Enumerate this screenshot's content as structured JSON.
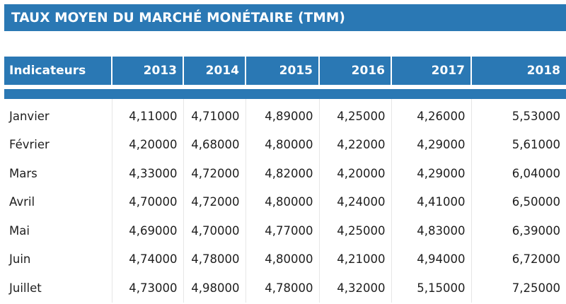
{
  "title": "TAUX MOYEN DU MARCHÉ MONÉTAIRE (TMM)",
  "colors": {
    "header_blue": "#2a78b4"
  },
  "table": {
    "columns": [
      "Indicateurs",
      "2013",
      "2014",
      "2015",
      "2016",
      "2017",
      "2018"
    ],
    "rows": [
      [
        "Janvier",
        "4,11000",
        "4,71000",
        "4,89000",
        "4,25000",
        "4,26000",
        "5,53000"
      ],
      [
        "Février",
        "4,20000",
        "4,68000",
        "4,80000",
        "4,22000",
        "4,29000",
        "5,61000"
      ],
      [
        "Mars",
        "4,33000",
        "4,72000",
        "4,82000",
        "4,20000",
        "4,29000",
        "6,04000"
      ],
      [
        "Avril",
        "4,70000",
        "4,72000",
        "4,80000",
        "4,24000",
        "4,41000",
        "6,50000"
      ],
      [
        "Mai",
        "4,69000",
        "4,70000",
        "4,77000",
        "4,25000",
        "4,83000",
        "6,39000"
      ],
      [
        "Juin",
        "4,74000",
        "4,78000",
        "4,80000",
        "4,21000",
        "4,94000",
        "6,72000"
      ],
      [
        "Juillet",
        "4,73000",
        "4,98000",
        "4,78000",
        "4,32000",
        "5,15000",
        "7,25000"
      ]
    ]
  }
}
